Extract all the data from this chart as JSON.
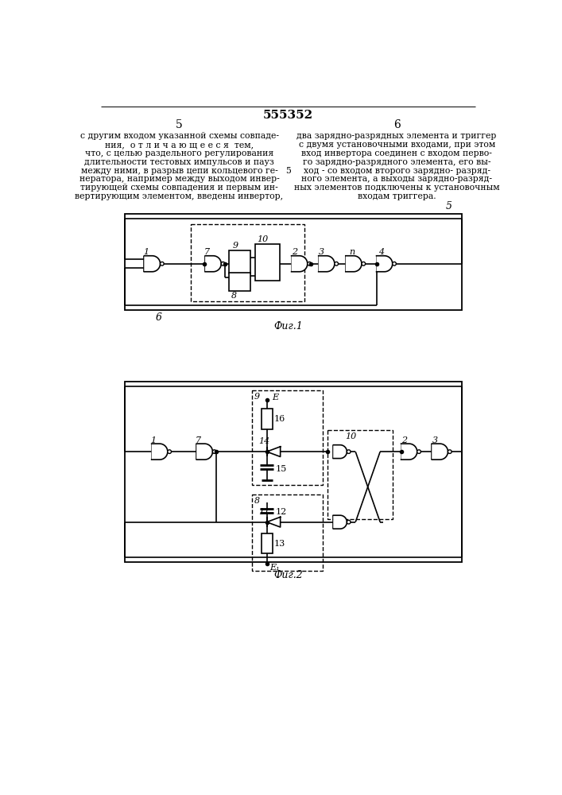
{
  "title": "555352",
  "page_left": "5",
  "page_right": "6",
  "text_left": "с другим входом указанной схемы совпаде-\nния,  о т л и ч а ю щ е е с я  тем,\nчто, с целью раздельного регулирования\nдлительности тестовых импульсов и пауз\nмежду ними, в разрыв цепи кольцевого ге-\nнератора, например между выходом инвер-\nтирующей схемы совпадения и первым ин-\nвертирующим элементом, введены инвертор,",
  "text_right": "два зарядно-разрядных элемента и триггер\nс двумя установочными входами, при этом\nвход инвертора соединен с входом перво-\nго зарядно-разрядного элемента, его вы-\nход - со входом второго зарядно- разряд-\nного элемента, а выходы зарядно-разряд-\nных элементов подключены к установочным\nвходам триггера.",
  "fig1_label": "Фиг.1",
  "fig2_label": "Фиг.2",
  "bg_color": "#ffffff",
  "line_color": "#000000"
}
